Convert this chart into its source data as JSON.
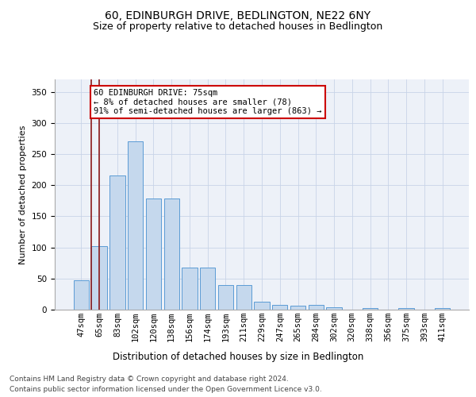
{
  "title1": "60, EDINBURGH DRIVE, BEDLINGTON, NE22 6NY",
  "title2": "Size of property relative to detached houses in Bedlington",
  "xlabel": "Distribution of detached houses by size in Bedlington",
  "ylabel": "Number of detached properties",
  "categories": [
    "47sqm",
    "65sqm",
    "83sqm",
    "102sqm",
    "120sqm",
    "138sqm",
    "156sqm",
    "174sqm",
    "193sqm",
    "211sqm",
    "229sqm",
    "247sqm",
    "265sqm",
    "284sqm",
    "302sqm",
    "320sqm",
    "338sqm",
    "356sqm",
    "375sqm",
    "393sqm",
    "411sqm"
  ],
  "values": [
    47,
    102,
    215,
    270,
    178,
    178,
    68,
    67,
    40,
    40,
    13,
    8,
    7,
    8,
    4,
    0,
    3,
    0,
    3,
    0,
    3
  ],
  "bar_color": "#c5d8ed",
  "bar_edge_color": "#5b9bd5",
  "vline_x_index": 1,
  "vline_color": "#8b1a1a",
  "annotation_text": "60 EDINBURGH DRIVE: 75sqm\n← 8% of detached houses are smaller (78)\n91% of semi-detached houses are larger (863) →",
  "annotation_box_color": "#ffffff",
  "annotation_box_edge": "#cc0000",
  "ylim": [
    0,
    370
  ],
  "yticks": [
    0,
    50,
    100,
    150,
    200,
    250,
    300,
    350
  ],
  "grid_color": "#c8d4e8",
  "bg_color": "#edf1f8",
  "footer1": "Contains HM Land Registry data © Crown copyright and database right 2024.",
  "footer2": "Contains public sector information licensed under the Open Government Licence v3.0.",
  "title1_fontsize": 10,
  "title2_fontsize": 9,
  "xlabel_fontsize": 8.5,
  "ylabel_fontsize": 8,
  "tick_fontsize": 7.5,
  "annotation_fontsize": 7.5,
  "footer_fontsize": 6.5
}
